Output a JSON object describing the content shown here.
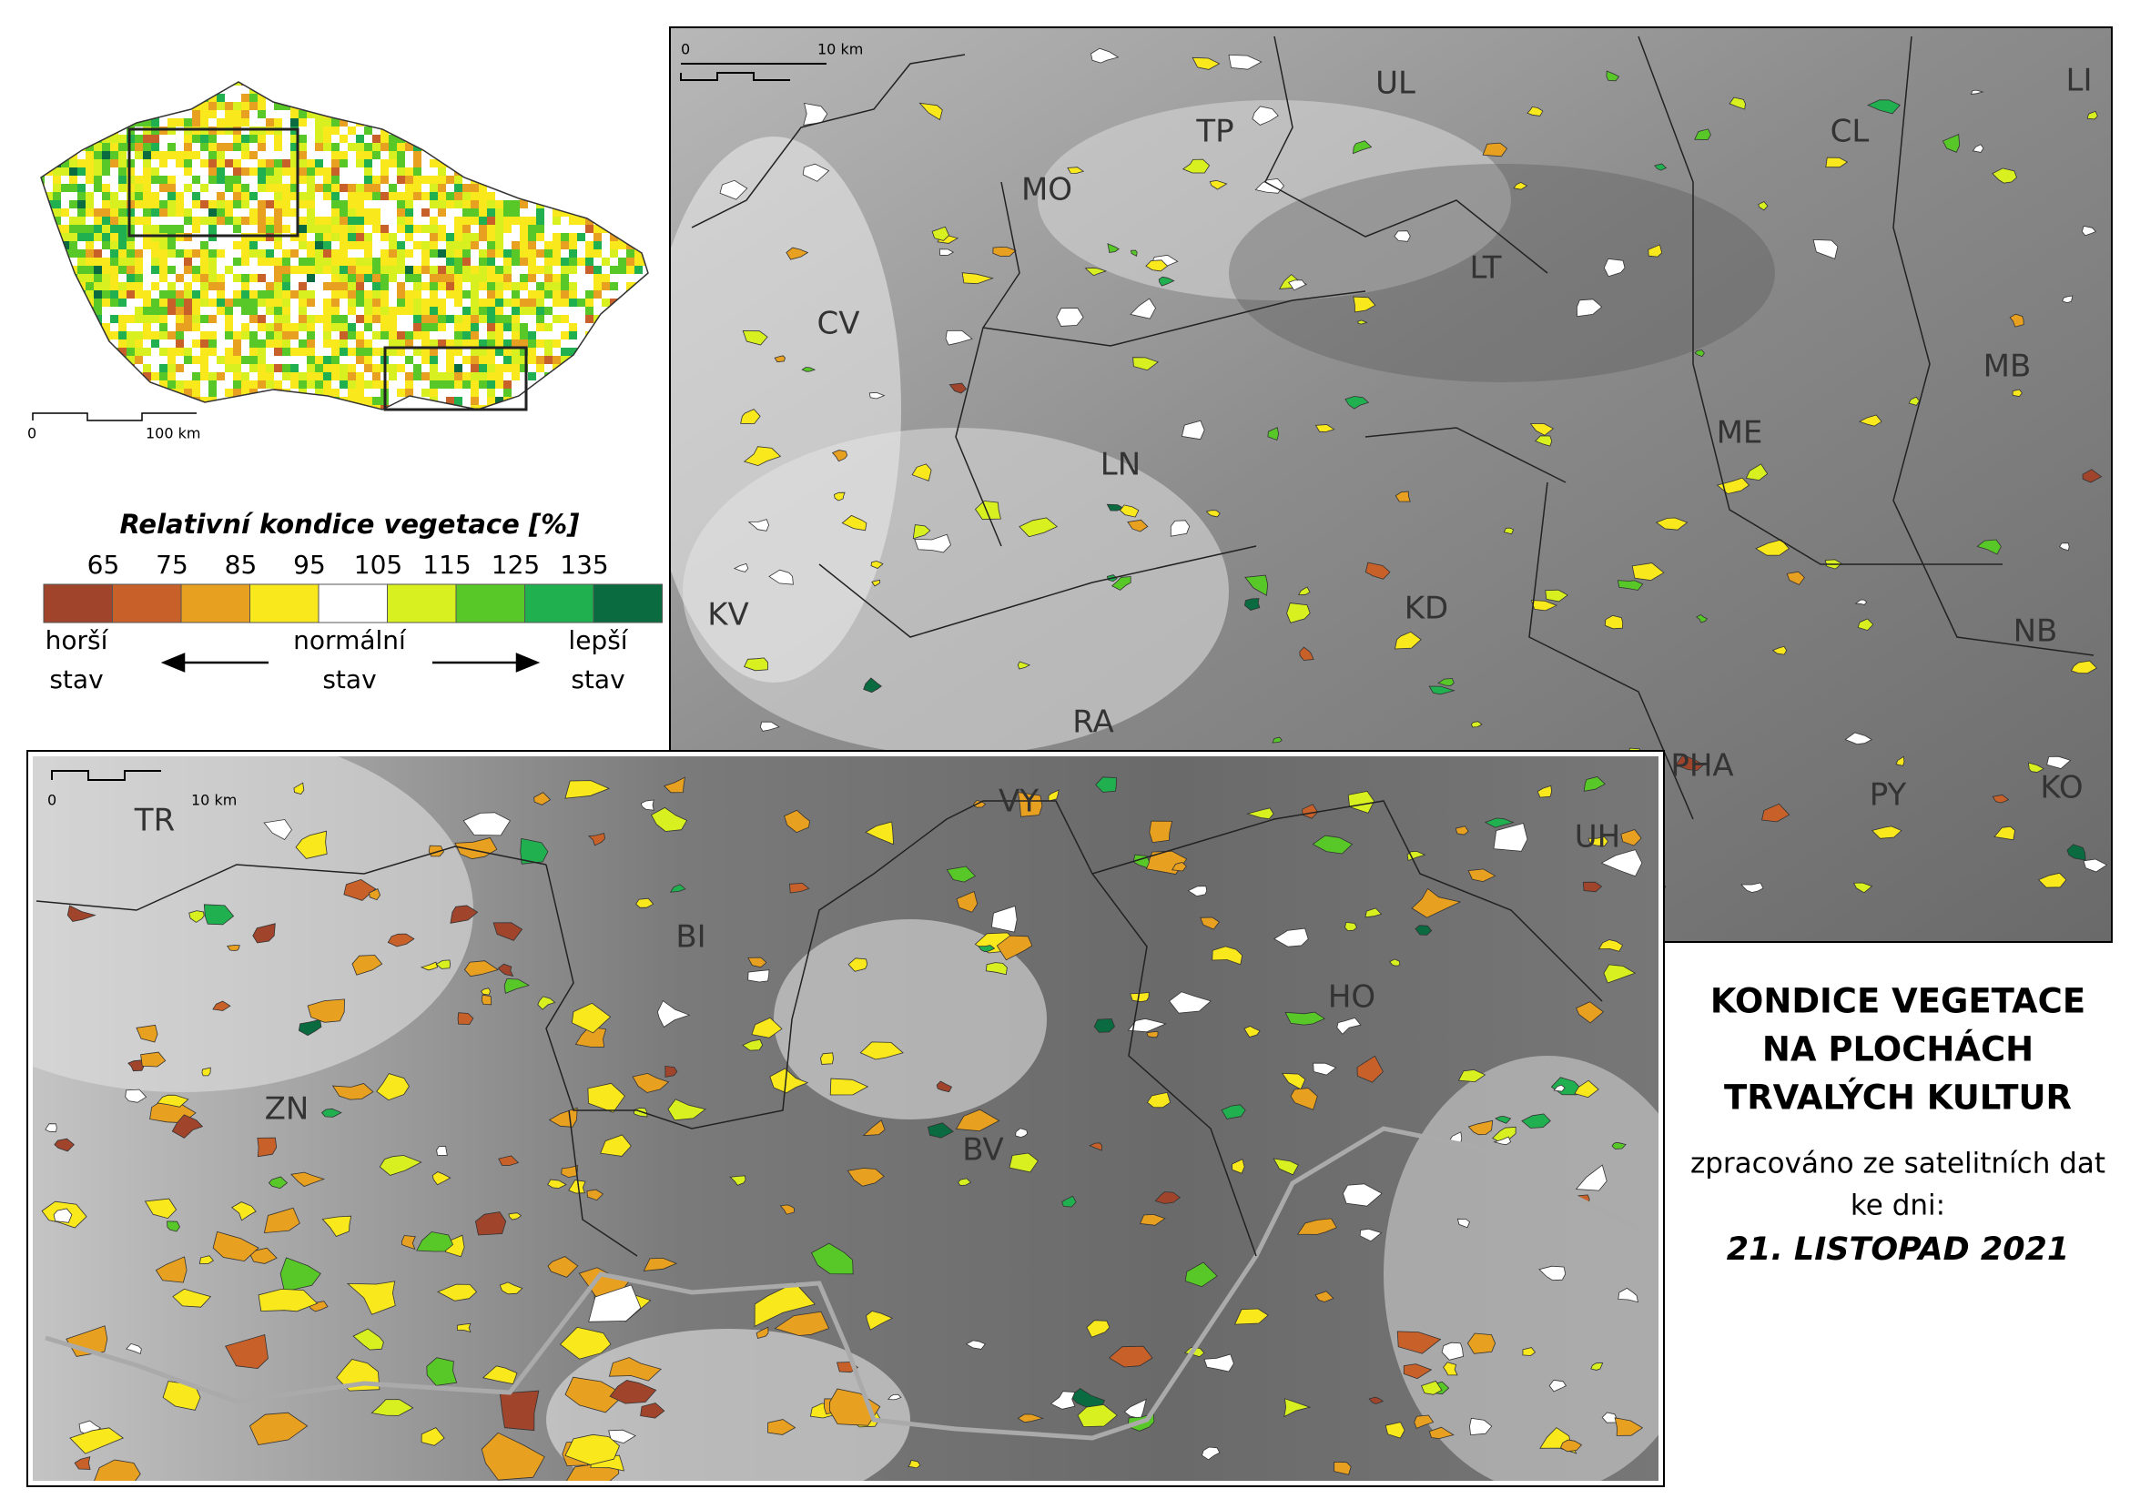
{
  "overview_map": {
    "scale_labels": [
      "0",
      "100 km"
    ]
  },
  "legend": {
    "title": "Relativní kondice vegetace [%]",
    "ticks": [
      65,
      75,
      85,
      95,
      105,
      115,
      125,
      135
    ],
    "colors": [
      "#a0442c",
      "#c8602a",
      "#e8a020",
      "#f8e81c",
      "#ffffff",
      "#d8f020",
      "#58c828",
      "#20b050",
      "#0a6a40"
    ],
    "labels": [
      "horší",
      "stav",
      "normální",
      "stav",
      "lepší",
      "stav"
    ]
  },
  "north_map": {
    "scale_labels": [
      "0",
      "10 km"
    ],
    "districts": [
      "UL",
      "TP",
      "CL",
      "LI",
      "MO",
      "LT",
      "CV",
      "MB",
      "ME",
      "LN",
      "KV",
      "KD",
      "NB",
      "RA",
      "PHA",
      "PY",
      "KO"
    ]
  },
  "south_map": {
    "scale_labels": [
      "0",
      "10 km"
    ],
    "districts": [
      "TR",
      "VY",
      "UH",
      "BI",
      "HO",
      "ZN",
      "BV"
    ]
  },
  "title": {
    "lines": [
      "KONDICE VEGETACE",
      "NA PLOCHÁCH",
      "TRVALÝCH KULTUR"
    ],
    "subtitle": [
      "zpracováno ze satelitních dat",
      "ke dni:"
    ],
    "date": "21. LISTOPAD 2021"
  }
}
